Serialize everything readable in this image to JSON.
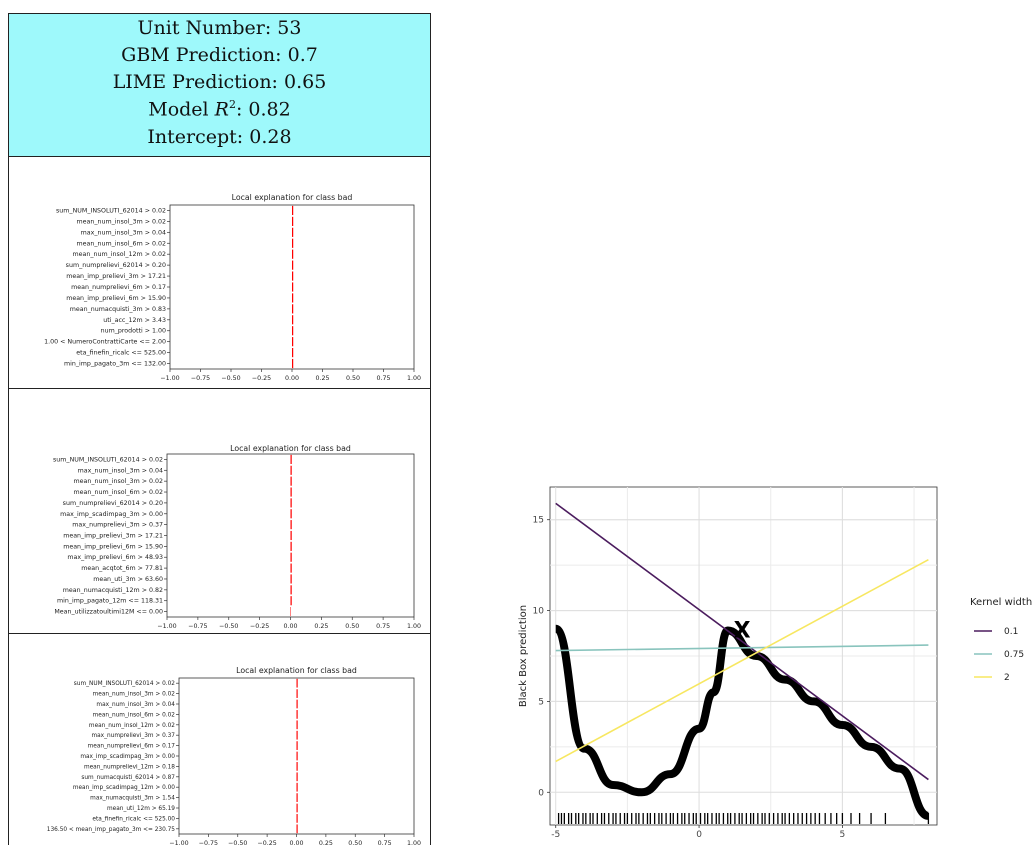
{
  "header": {
    "unit": "Unit Number: 53",
    "gbm": "GBM Prediction: 0.7",
    "lime": "LIME Prediction: 0.65",
    "r2_prefix": "Model ",
    "r2_symbol": "R",
    "r2_exp": "2",
    "r2_value": ": 0.82",
    "intercept": "Intercept: 0.28"
  },
  "chart_data": [
    {
      "type": "bar",
      "orientation": "horizontal",
      "title": "Local explanation for class bad",
      "categories": [
        "sum_NUM_INSOLUTI_62014 > 0.02",
        "mean_num_insol_3m > 0.02",
        "max_num_insol_3m > 0.04",
        "mean_num_insol_6m > 0.02",
        "mean_num_insol_12m > 0.02",
        "sum_numprelievi_62014 > 0.20",
        "mean_imp_prelievi_3m > 17.21",
        "mean_numprelievi_6m > 0.17",
        "mean_imp_prelievi_6m > 15.90",
        "mean_numacquisti_3m > 0.83",
        "uti_acc_12m > 3.43",
        "num_prodotti > 1.00",
        "1.00 < NumeroContrattiCarte <= 2.00",
        "eta_finefin_ricalc <= 525.00",
        "min_imp_pagato_3m <= 132.00"
      ],
      "values": [
        0.01,
        0.01,
        0.01,
        0.01,
        0.01,
        0.01,
        0.01,
        0.01,
        0.01,
        0.01,
        0.01,
        0.01,
        0.01,
        0.01,
        0.01
      ],
      "xlim": [
        -1.0,
        1.0
      ],
      "xticks": [
        "−1.00",
        "−0.75",
        "−0.50",
        "−0.25",
        "0.00",
        "0.25",
        "0.50",
        "0.75",
        "1.00"
      ],
      "bar_color": "#ff0000"
    },
    {
      "type": "bar",
      "orientation": "horizontal",
      "title": "Local explanation for class bad",
      "categories": [
        "sum_NUM_INSOLUTI_62014 > 0.02",
        "max_num_insol_3m > 0.04",
        "mean_num_insol_3m > 0.02",
        "mean_num_insol_6m > 0.02",
        "sum_numprelievi_62014 > 0.20",
        "max_imp_scadimpag_3m > 0.00",
        "max_numprelievi_3m > 0.37",
        "mean_imp_prelievi_3m > 17.21",
        "mean_imp_prelievi_6m > 15.90",
        "max_imp_prelievi_6m > 48.93",
        "mean_acqtot_6m > 77.81",
        "mean_uti_3m > 63.60",
        "mean_numacquisti_12m > 0.82",
        "min_imp_pagato_12m <= 118.31",
        "Mean_utilizzatoultimi12M <= 0.00"
      ],
      "values": [
        0.01,
        0.01,
        0.01,
        0.01,
        0.01,
        0.01,
        0.01,
        0.01,
        0.01,
        0.01,
        0.01,
        0.01,
        0.01,
        0.01,
        0.0
      ],
      "xlim": [
        -1.0,
        1.0
      ],
      "xticks": [
        "−1.00",
        "−0.75",
        "−0.50",
        "−0.25",
        "0.00",
        "0.25",
        "0.50",
        "0.75",
        "1.00"
      ],
      "bar_color": "#ff0000"
    },
    {
      "type": "bar",
      "orientation": "horizontal",
      "title": "Local explanation for class bad",
      "categories": [
        "sum_NUM_INSOLUTI_62014 > 0.02",
        "mean_num_insol_3m > 0.02",
        "max_num_insol_3m > 0.04",
        "mean_num_insol_6m > 0.02",
        "mean_num_insol_12m > 0.02",
        "max_numprelievi_3m > 0.37",
        "mean_numprelievi_6m > 0.17",
        "max_imp_scadimpag_3m > 0.00",
        "mean_numprelievi_12m > 0.18",
        "sum_numacquisti_62014 > 0.87",
        "mean_imp_scadimpag_12m > 0.00",
        "max_numacquisti_3m > 1.54",
        "mean_uti_12m > 65.19",
        "eta_finefin_ricalc <= 525.00",
        "136.50 < mean_imp_pagato_3m <= 230.75"
      ],
      "values": [
        0.01,
        0.01,
        0.01,
        0.01,
        0.01,
        0.01,
        0.01,
        0.01,
        0.01,
        0.01,
        0.01,
        0.01,
        0.01,
        0.01,
        0.01
      ],
      "xlim": [
        -1.0,
        1.0
      ],
      "xticks": [
        "−1.00",
        "−0.75",
        "−0.50",
        "−0.25",
        "0.00",
        "0.25",
        "0.50",
        "0.75",
        "1.00"
      ],
      "bar_color": "#ff0000"
    },
    {
      "type": "line",
      "ylabel": "Black Box prediction",
      "xlabel": "",
      "xlim": [
        -5.2,
        8.3
      ],
      "ylim": [
        -1.8,
        16.8
      ],
      "xticks": [
        -5,
        0,
        5
      ],
      "yticks": [
        0,
        5,
        10,
        15
      ],
      "grid": true,
      "legend_title": "Kernel width",
      "legend_position": "right",
      "marker_label": "X",
      "marker_point": [
        1.5,
        9.0
      ],
      "black_box_curve": [
        [
          -5,
          9.0
        ],
        [
          -4,
          2.4
        ],
        [
          -3,
          0.4
        ],
        [
          -2,
          0.0
        ],
        [
          -1,
          1.0
        ],
        [
          0,
          3.5
        ],
        [
          0.5,
          5.5
        ],
        [
          1,
          8.9
        ],
        [
          2,
          7.5
        ],
        [
          3,
          6.2
        ],
        [
          4,
          5.0
        ],
        [
          5,
          3.7
        ],
        [
          6,
          2.5
        ],
        [
          7,
          1.3
        ],
        [
          8,
          -1.3
        ]
      ],
      "series": [
        {
          "name": "0.1",
          "color": "#4b1c5e",
          "x": [
            -5,
            8
          ],
          "y": [
            15.9,
            0.7
          ]
        },
        {
          "name": "0.75",
          "color": "#89c4bd",
          "x": [
            -5,
            8
          ],
          "y": [
            7.8,
            8.1
          ]
        },
        {
          "name": "2",
          "color": "#f7e761",
          "x": [
            -5,
            8
          ],
          "y": [
            1.7,
            12.8
          ]
        }
      ],
      "rug_x": [
        -4.9,
        -4.8,
        -4.7,
        -4.55,
        -4.45,
        -4.3,
        -4.2,
        -4.05,
        -3.95,
        -3.8,
        -3.7,
        -3.55,
        -3.4,
        -3.3,
        -3.15,
        -3.0,
        -2.9,
        -2.75,
        -2.6,
        -2.5,
        -2.35,
        -2.2,
        -2.1,
        -1.95,
        -1.8,
        -1.7,
        -1.55,
        -1.4,
        -1.3,
        -1.15,
        -1.0,
        -0.9,
        -0.75,
        -0.6,
        -0.5,
        -0.35,
        -0.2,
        -0.1,
        0.05,
        0.2,
        0.3,
        0.45,
        0.6,
        0.7,
        0.85,
        1.0,
        1.1,
        1.25,
        1.4,
        1.5,
        1.65,
        1.8,
        1.9,
        2.05,
        2.2,
        2.3,
        2.45,
        2.6,
        2.75,
        2.9,
        3.0,
        3.15,
        3.3,
        3.45,
        3.6,
        3.75,
        3.9,
        4.05,
        4.2,
        4.4,
        4.6,
        4.8,
        5.0,
        5.3,
        5.6,
        6.0,
        6.5,
        8.0
      ]
    }
  ]
}
